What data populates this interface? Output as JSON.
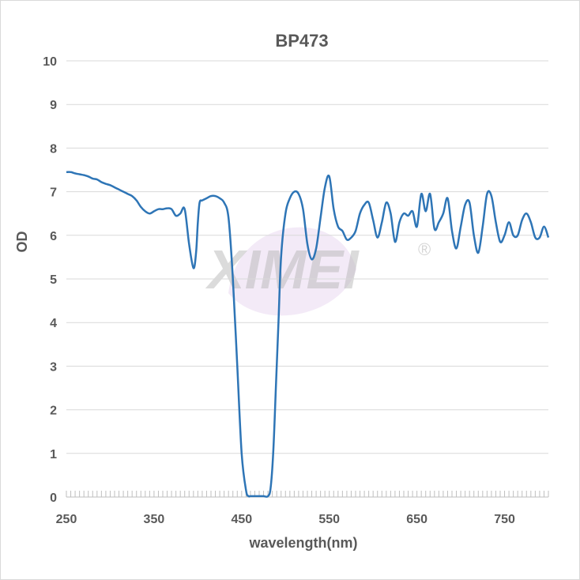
{
  "chart_data": {
    "type": "line",
    "title": "BP473",
    "xlabel": "wavelength(nm)",
    "ylabel": "OD",
    "xlim": [
      250,
      800
    ],
    "ylim": [
      0,
      10
    ],
    "xticks": [
      250,
      350,
      450,
      550,
      650,
      750
    ],
    "yticks": [
      0,
      1,
      2,
      3,
      4,
      5,
      6,
      7,
      8,
      9,
      10
    ],
    "grid": true,
    "legend": "none",
    "line_color": "#2e75b6",
    "watermark": "XIMEI",
    "watermark_mark": "®",
    "series": [
      {
        "x": [
          250,
          255,
          260,
          265,
          270,
          275,
          280,
          285,
          290,
          295,
          300,
          305,
          310,
          315,
          320,
          325,
          330,
          335,
          340,
          345,
          350,
          355,
          360,
          365,
          370,
          375,
          380,
          385,
          390,
          395,
          398,
          400,
          402,
          405,
          410,
          415,
          420,
          425,
          430,
          435,
          440,
          445,
          450,
          455,
          458,
          460,
          465,
          470,
          475,
          480,
          483,
          486,
          489,
          492,
          495,
          500,
          505,
          510,
          515,
          520,
          525,
          530,
          535,
          540,
          545,
          550,
          555,
          560,
          565,
          570,
          575,
          580,
          585,
          590,
          595,
          600,
          605,
          610,
          615,
          620,
          625,
          630,
          635,
          640,
          645,
          650,
          655,
          660,
          665,
          670,
          675,
          680,
          685,
          690,
          695,
          700,
          705,
          710,
          715,
          720,
          725,
          730,
          735,
          740,
          745,
          750,
          755,
          760,
          765,
          770,
          775,
          780,
          785,
          790,
          795,
          800
        ],
        "y": [
          7.45,
          7.45,
          7.42,
          7.4,
          7.38,
          7.35,
          7.3,
          7.28,
          7.22,
          7.18,
          7.15,
          7.1,
          7.05,
          7.0,
          6.95,
          6.9,
          6.8,
          6.65,
          6.55,
          6.5,
          6.55,
          6.6,
          6.6,
          6.62,
          6.6,
          6.45,
          6.5,
          6.6,
          5.8,
          5.25,
          5.6,
          6.3,
          6.75,
          6.8,
          6.85,
          6.9,
          6.9,
          6.85,
          6.75,
          6.4,
          5.0,
          3.0,
          1.0,
          0.15,
          0.02,
          0.02,
          0.02,
          0.02,
          0.02,
          0.02,
          0.2,
          1.0,
          2.5,
          4.0,
          5.5,
          6.5,
          6.85,
          7.0,
          6.95,
          6.6,
          5.8,
          5.45,
          5.7,
          6.4,
          7.1,
          7.35,
          6.6,
          6.2,
          6.1,
          5.9,
          5.95,
          6.1,
          6.5,
          6.7,
          6.75,
          6.35,
          5.95,
          6.3,
          6.75,
          6.5,
          5.85,
          6.3,
          6.5,
          6.45,
          6.55,
          6.2,
          6.95,
          6.55,
          6.95,
          6.15,
          6.3,
          6.5,
          6.85,
          6.1,
          5.7,
          6.2,
          6.7,
          6.75,
          6.0,
          5.6,
          6.2,
          6.95,
          6.9,
          6.3,
          5.85,
          6.0,
          6.3,
          6.0,
          6.0,
          6.35,
          6.5,
          6.3,
          5.95,
          5.95,
          6.2,
          5.95
        ]
      }
    ]
  }
}
